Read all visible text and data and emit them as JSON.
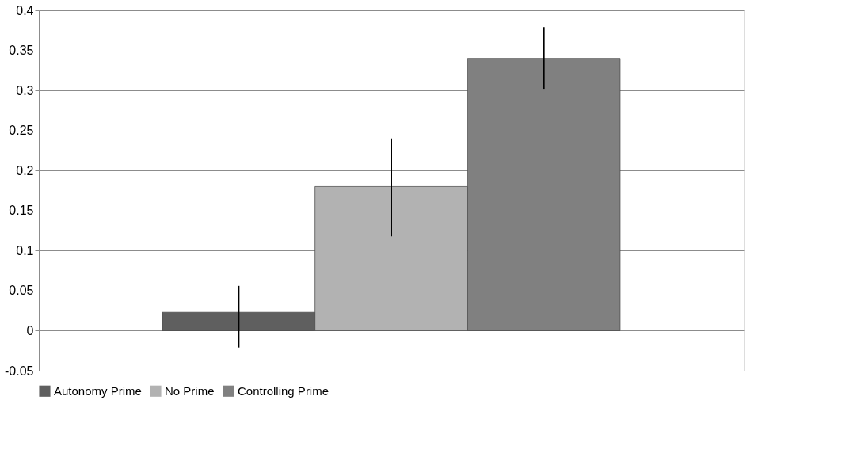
{
  "chart_data": {
    "type": "bar",
    "categories": [
      null
    ],
    "series": [
      {
        "name": "Autonomy Prime",
        "color": "#5f5f5f",
        "values": [
          0.023
        ],
        "errors": [
          [
            -0.021,
            0.056
          ]
        ]
      },
      {
        "name": "No Prime",
        "color": "#b2b2b2",
        "values": [
          0.18
        ],
        "errors": [
          [
            0.118,
            0.24
          ]
        ]
      },
      {
        "name": "Controlling Prime",
        "color": "#808080",
        "values": [
          0.34
        ],
        "errors": [
          [
            0.302,
            0.379
          ]
        ]
      }
    ],
    "ylim": [
      -0.05,
      0.4
    ],
    "yticks": [
      -0.05,
      0,
      0.05,
      0.1,
      0.15,
      0.2,
      0.25,
      0.3,
      0.35,
      0.4
    ],
    "grid": "y",
    "legend": "bottom"
  }
}
